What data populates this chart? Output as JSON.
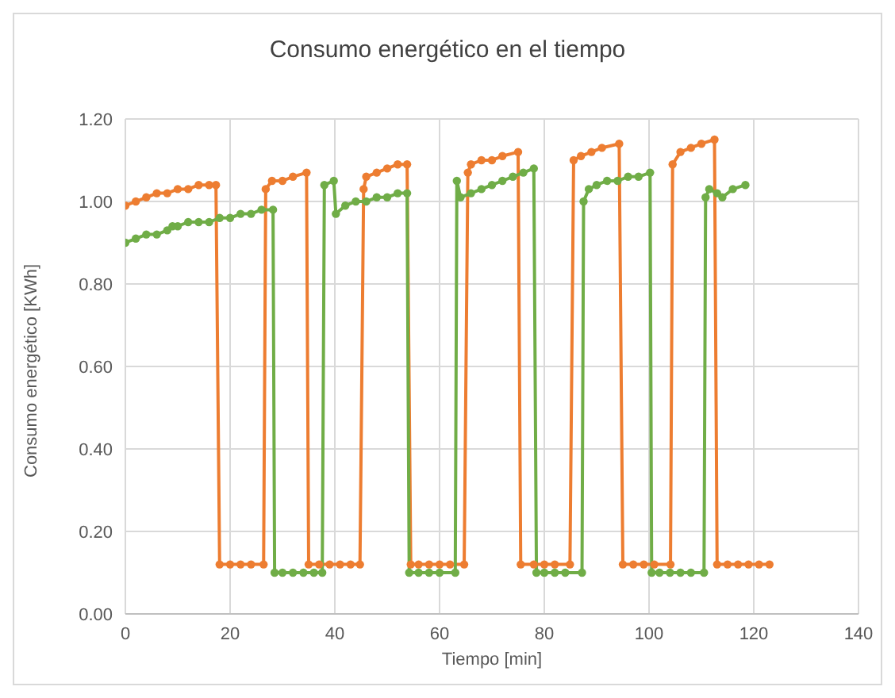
{
  "chart_data": {
    "type": "line",
    "title": "Consumo energético en el tiempo",
    "xlabel": "Tiempo [min]",
    "ylabel": "Consumo energético [KWh]",
    "xlim": [
      0,
      140
    ],
    "xticks": [
      0,
      20,
      40,
      60,
      80,
      100,
      120,
      140
    ],
    "ylim": [
      0,
      1.2
    ],
    "yticks": [
      {
        "value": 0,
        "label": "0.00"
      },
      {
        "value": 0.2,
        "label": "0.20"
      },
      {
        "value": 0.4,
        "label": "0.40"
      },
      {
        "value": 0.6,
        "label": "0.60"
      },
      {
        "value": 0.8,
        "label": "0.80"
      },
      {
        "value": 1.0,
        "label": "1.00"
      },
      {
        "value": 1.2,
        "label": "1.20"
      }
    ],
    "grid": true,
    "legend": false,
    "marker": "circle",
    "line_style": "solid",
    "series": [
      {
        "color": "#ed7d31",
        "x": [
          0,
          2,
          4,
          6,
          8,
          10,
          12,
          14,
          16,
          17.3,
          18,
          20,
          22,
          24,
          26.4,
          26.8,
          28,
          30,
          32,
          34.6,
          35,
          37,
          39,
          41,
          43,
          44.8,
          45.5,
          46,
          48,
          50,
          52,
          53.8,
          54.5,
          56,
          58,
          60,
          62,
          64.7,
          65.4,
          66,
          68,
          70,
          72,
          75,
          75.5,
          78,
          80,
          82,
          84.9,
          85.6,
          87,
          89,
          91,
          94.3,
          95,
          97,
          99,
          101,
          104.1,
          104.5,
          106,
          108,
          110,
          112.5,
          113,
          115,
          117,
          119,
          121,
          123
        ],
        "values": [
          0.99,
          1.0,
          1.01,
          1.02,
          1.02,
          1.03,
          1.03,
          1.04,
          1.04,
          1.04,
          0.12,
          0.12,
          0.12,
          0.12,
          0.12,
          1.03,
          1.05,
          1.05,
          1.06,
          1.07,
          0.12,
          0.12,
          0.12,
          0.12,
          0.12,
          0.12,
          1.03,
          1.06,
          1.07,
          1.08,
          1.09,
          1.09,
          0.12,
          0.12,
          0.12,
          0.12,
          0.12,
          0.12,
          1.07,
          1.09,
          1.1,
          1.1,
          1.11,
          1.12,
          0.12,
          0.12,
          0.12,
          0.12,
          0.12,
          1.1,
          1.11,
          1.12,
          1.13,
          1.14,
          0.12,
          0.12,
          0.12,
          0.12,
          0.12,
          1.09,
          1.12,
          1.13,
          1.14,
          1.15,
          0.12,
          0.12,
          0.12,
          0.12,
          0.12,
          0.12
        ]
      },
      {
        "color": "#70ad47",
        "x": [
          0,
          2,
          4,
          6,
          8,
          9,
          10,
          12,
          14,
          16,
          18,
          20,
          22,
          24,
          26,
          28.2,
          28.5,
          30,
          32,
          34,
          36,
          37.6,
          38,
          39.8,
          40.2,
          42,
          44,
          46,
          48,
          50,
          52,
          53.8,
          54.2,
          56,
          58,
          60,
          63,
          63.3,
          64,
          66,
          68,
          70,
          72,
          74,
          76,
          78,
          78.5,
          80,
          82,
          84,
          87.2,
          87.5,
          88.5,
          90,
          92,
          94,
          96,
          98,
          100.2,
          100.5,
          102,
          104,
          106,
          108,
          110.5,
          110.8,
          111.5,
          113,
          114,
          116,
          118.4
        ],
        "values": [
          0.9,
          0.91,
          0.92,
          0.92,
          0.93,
          0.94,
          0.94,
          0.95,
          0.95,
          0.95,
          0.96,
          0.96,
          0.97,
          0.97,
          0.98,
          0.98,
          0.1,
          0.1,
          0.1,
          0.1,
          0.1,
          0.1,
          1.04,
          1.05,
          0.97,
          0.99,
          1.0,
          1.0,
          1.01,
          1.01,
          1.02,
          1.02,
          0.1,
          0.1,
          0.1,
          0.1,
          0.1,
          1.05,
          1.01,
          1.02,
          1.03,
          1.04,
          1.05,
          1.06,
          1.07,
          1.08,
          0.1,
          0.1,
          0.1,
          0.1,
          0.1,
          1.0,
          1.03,
          1.04,
          1.05,
          1.05,
          1.06,
          1.06,
          1.07,
          0.1,
          0.1,
          0.1,
          0.1,
          0.1,
          0.1,
          1.01,
          1.03,
          1.02,
          1.01,
          1.03,
          1.04
        ]
      }
    ]
  }
}
